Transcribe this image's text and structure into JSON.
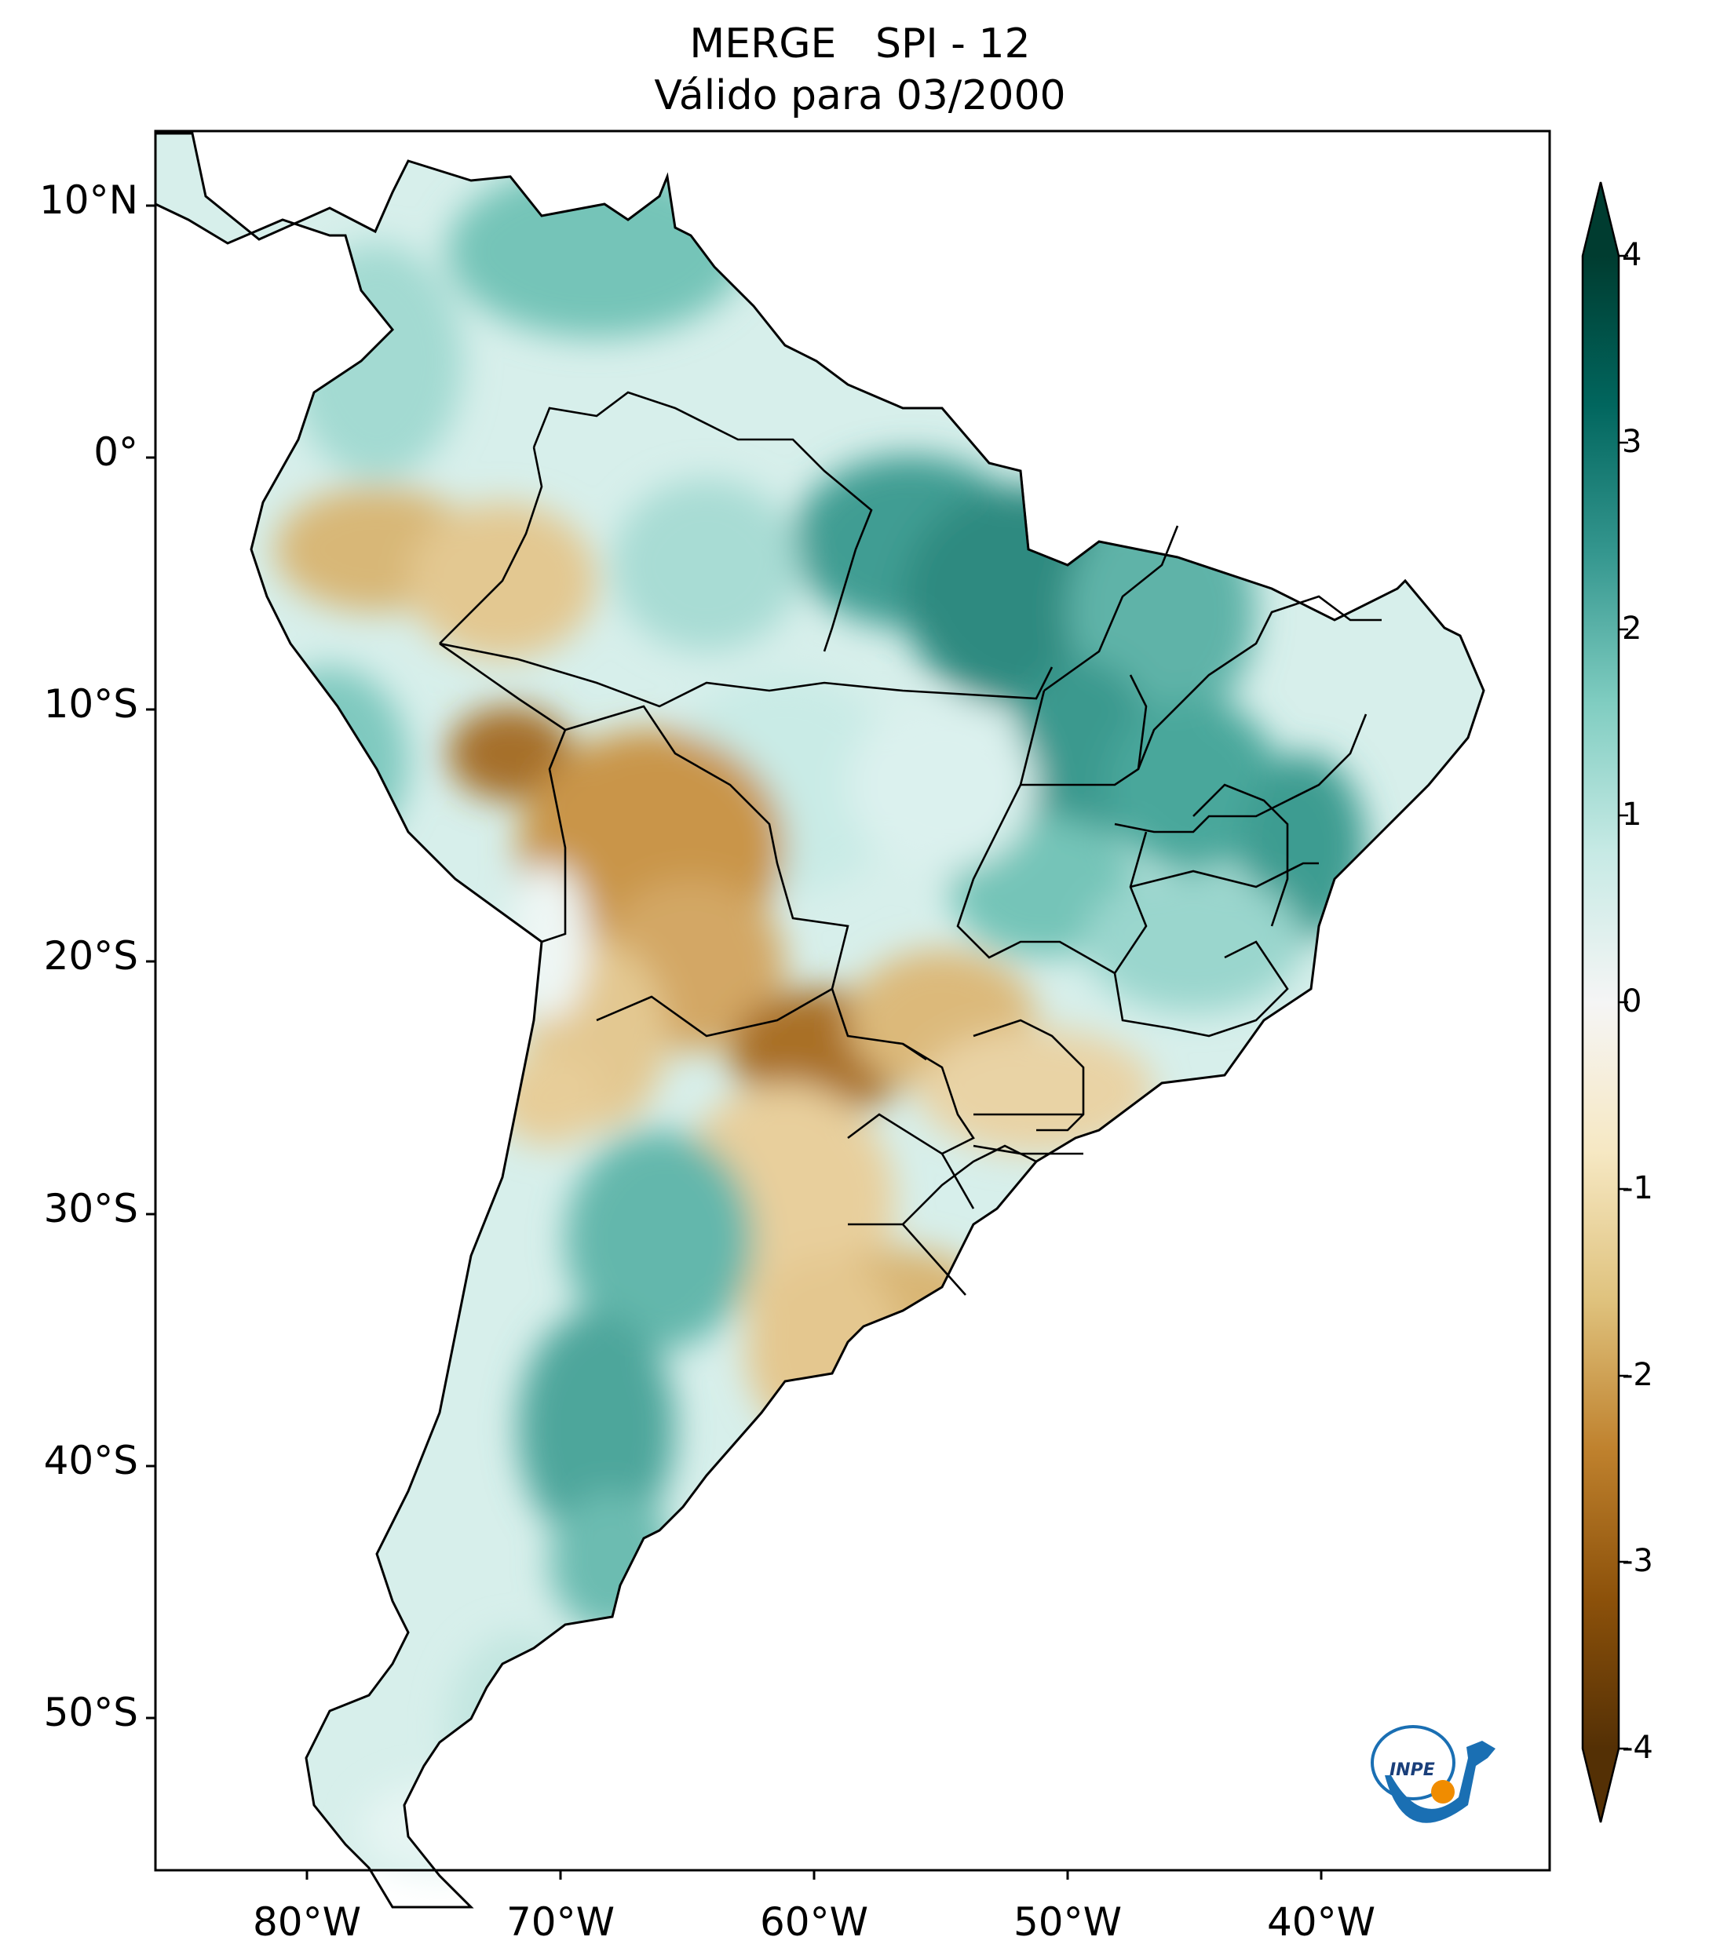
{
  "title": {
    "line1": "MERGE   SPI - 12",
    "line2": "Válido para 03/2000"
  },
  "map": {
    "lat_labels": [
      "10°N",
      "0°",
      "10°S",
      "20°S",
      "30°S",
      "40°S",
      "50°S"
    ],
    "lon_labels": [
      "80°W",
      "70°W",
      "60°W",
      "50°W",
      "40°W"
    ],
    "extent": {
      "lon_min": -86,
      "lon_max": -31,
      "lat_min": -56,
      "lat_max": 13
    }
  },
  "colorbar": {
    "ticks": [
      "4",
      "3",
      "2",
      "1",
      "0",
      "-1",
      "-2",
      "-3",
      "-4"
    ],
    "min": -4,
    "max": 4,
    "extend": "both",
    "colormap": "BrBG",
    "colors": [
      "#543005",
      "#8c510a",
      "#bf812d",
      "#dfc27d",
      "#f6e8c3",
      "#f5f5f5",
      "#c7eae5",
      "#80cdc1",
      "#35978f",
      "#01665e",
      "#003c30"
    ]
  },
  "logo": {
    "text": "INPE"
  }
}
